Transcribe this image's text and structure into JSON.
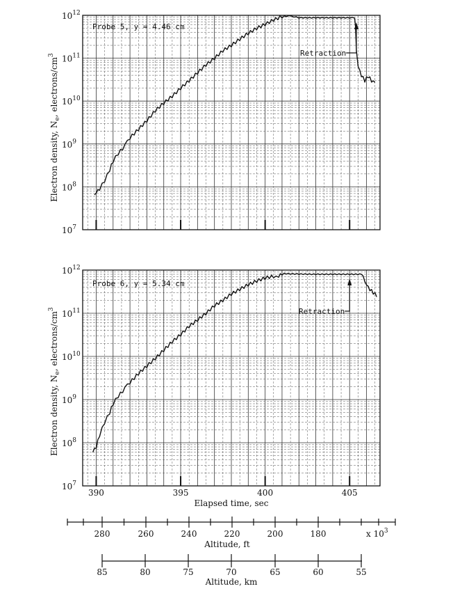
{
  "chart_data": [
    {
      "type": "line",
      "annotation": "Probe 5, y = 4.46 cm",
      "retraction_label": "Retraction",
      "ylabel": "Electron density, N",
      "ylabel_sub": "e",
      "ylabel_unit": ", electrons/cm",
      "ylabel_unit_sup": "3",
      "yscale": "log",
      "ylim": [
        10000000.0,
        1000000000000.0
      ],
      "xlim": [
        389.2,
        406.8
      ],
      "yticks": [
        {
          "base": "10",
          "exp": "7"
        },
        {
          "base": "10",
          "exp": "8"
        },
        {
          "base": "10",
          "exp": "9"
        },
        {
          "base": "10",
          "exp": "10"
        },
        {
          "base": "10",
          "exp": "11"
        },
        {
          "base": "10",
          "exp": "12"
        }
      ],
      "retraction_time": 405.4,
      "series": [
        {
          "x": [
            389.9,
            390.0,
            390.2,
            390.5,
            390.8,
            391.0,
            391.3,
            391.7,
            392.0,
            392.5,
            393.0,
            393.5,
            394.0,
            394.5,
            395.0,
            395.5,
            396.0,
            396.5,
            397.0,
            397.5,
            398.0,
            398.5,
            399.0,
            399.5,
            400.0,
            400.5,
            401.0,
            401.4,
            401.7,
            402.0,
            402.5,
            403.0,
            403.5,
            404.0,
            404.5,
            405.0,
            405.3,
            405.35,
            405.4,
            405.5,
            405.7,
            405.9,
            406.1,
            406.3,
            406.5
          ],
          "y": [
            65000000.0,
            70000000.0,
            90000000.0,
            140000000.0,
            250000000.0,
            400000000.0,
            600000000.0,
            900000000.0,
            1400000000.0,
            2200000000.0,
            3500000000.0,
            6000000000.0,
            9000000000.0,
            13000000000.0,
            20000000000.0,
            30000000000.0,
            46000000000.0,
            70000000000.0,
            100000000000.0,
            150000000000.0,
            200000000000.0,
            280000000000.0,
            380000000000.0,
            500000000000.0,
            620000000000.0,
            780000000000.0,
            940000000000.0,
            960000000000.0,
            930000000000.0,
            880000000000.0,
            880000000000.0,
            880000000000.0,
            880000000000.0,
            880000000000.0,
            880000000000.0,
            880000000000.0,
            880000000000.0,
            500000000000.0,
            140000000000.0,
            60000000000.0,
            40000000000.0,
            30000000000.0,
            38000000000.0,
            30000000000.0,
            28000000000.0
          ]
        }
      ]
    },
    {
      "type": "line",
      "annotation": "Probe 6, y = 5.34 cm",
      "retraction_label": "Retraction",
      "ylabel": "Electron density, N",
      "ylabel_sub": "e",
      "ylabel_unit": ", electrons/cm",
      "ylabel_unit_sup": "3",
      "yscale": "log",
      "ylim": [
        10000000.0,
        1000000000000.0
      ],
      "xlim": [
        389.2,
        406.8
      ],
      "yticks": [
        {
          "base": "10",
          "exp": "7"
        },
        {
          "base": "10",
          "exp": "8"
        },
        {
          "base": "10",
          "exp": "9"
        },
        {
          "base": "10",
          "exp": "10"
        },
        {
          "base": "10",
          "exp": "11"
        },
        {
          "base": "10",
          "exp": "12"
        }
      ],
      "retraction_time": 405.0,
      "series": [
        {
          "x": [
            389.8,
            390.0,
            390.2,
            390.5,
            390.8,
            391.0,
            391.3,
            391.7,
            392.0,
            392.5,
            393.0,
            393.5,
            394.0,
            394.5,
            395.0,
            395.5,
            396.0,
            396.5,
            397.0,
            397.5,
            398.0,
            398.5,
            399.0,
            399.5,
            400.0,
            400.5,
            400.8,
            401.0,
            401.5,
            402.0,
            403.0,
            404.0,
            405.0,
            405.6,
            405.8,
            405.9,
            406.0,
            406.2,
            406.4,
            406.6
          ],
          "y": [
            60000000.0,
            80000000.0,
            150000000.0,
            300000000.0,
            500000000.0,
            800000000.0,
            1200000000.0,
            1800000000.0,
            2500000000.0,
            4000000000.0,
            6000000000.0,
            9000000000.0,
            14000000000.0,
            22000000000.0,
            32000000000.0,
            50000000000.0,
            70000000000.0,
            100000000000.0,
            150000000000.0,
            200000000000.0,
            280000000000.0,
            360000000000.0,
            460000000000.0,
            560000000000.0,
            660000000000.0,
            720000000000.0,
            700000000000.0,
            830000000000.0,
            820000000000.0,
            810000000000.0,
            800000000000.0,
            800000000000.0,
            800000000000.0,
            800000000000.0,
            750000000000.0,
            500000000000.0,
            420000000000.0,
            360000000000.0,
            300000000000.0,
            260000000000.0
          ]
        }
      ]
    }
  ],
  "time_axis": {
    "label": "Elapsed time, sec",
    "ticks": [
      {
        "value": 390,
        "label": "390"
      },
      {
        "value": 395,
        "label": "395"
      },
      {
        "value": 400,
        "label": "400"
      },
      {
        "value": 405,
        "label": "405"
      }
    ]
  },
  "altitude_ft_axis": {
    "label": "Altitude, ft",
    "multiplier": "x 10",
    "multiplier_sup": "3",
    "ticks": [
      "280",
      "260",
      "240",
      "220",
      "200",
      "180"
    ]
  },
  "altitude_km_axis": {
    "label": "Altitude, km",
    "ticks": [
      "85",
      "80",
      "75",
      "70",
      "65",
      "60",
      "55"
    ]
  }
}
